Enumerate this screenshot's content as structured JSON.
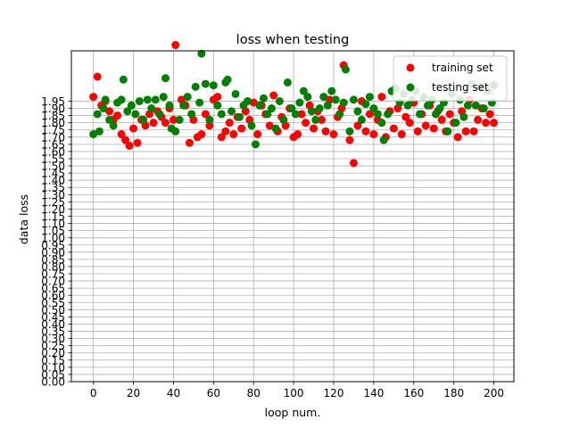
{
  "chart_data": {
    "type": "scatter",
    "title": "loss when testing",
    "xlabel": "loop num.",
    "ylabel": "data loss",
    "xlim": [
      -11,
      210
    ],
    "ylim": [
      0,
      2.3
    ],
    "grid": true,
    "legend_position": "upper right",
    "x_ticks": [
      0,
      20,
      40,
      60,
      80,
      100,
      120,
      140,
      160,
      180,
      200
    ],
    "y_ticks": [
      "0.00",
      "0.05",
      "0.10",
      "0.15",
      "0.20",
      "0.25",
      "0.30",
      "0.35",
      "0.40",
      "0.45",
      "0.50",
      "0.55",
      "0.60",
      "0.65",
      "0.70",
      "0.75",
      "0.80",
      "0.85",
      "0.90",
      "0.95",
      "1.00",
      "1.05",
      "1.10",
      "1.15",
      "1.20",
      "1.25",
      "1.30",
      "1.35",
      "1.40",
      "1.45",
      "1.50",
      "1.55",
      "1.60",
      "1.65",
      "1.70",
      "1.75",
      "1.80",
      "1.85",
      "1.90",
      "1.95"
    ],
    "series": [
      {
        "name": "training set",
        "color": "#ff0000",
        "points": [
          [
            0,
            1.98
          ],
          [
            2,
            2.12
          ],
          [
            4,
            1.92
          ],
          [
            6,
            1.95
          ],
          [
            8,
            1.88
          ],
          [
            10,
            1.82
          ],
          [
            12,
            1.85
          ],
          [
            14,
            1.72
          ],
          [
            16,
            1.68
          ],
          [
            18,
            1.64
          ],
          [
            20,
            1.76
          ],
          [
            22,
            1.66
          ],
          [
            24,
            1.82
          ],
          [
            26,
            1.78
          ],
          [
            28,
            1.86
          ],
          [
            30,
            1.8
          ],
          [
            32,
            1.88
          ],
          [
            34,
            1.84
          ],
          [
            36,
            1.8
          ],
          [
            38,
            1.9
          ],
          [
            40,
            1.82
          ],
          [
            41,
            2.34
          ],
          [
            44,
            1.96
          ],
          [
            46,
            1.92
          ],
          [
            48,
            1.66
          ],
          [
            50,
            1.82
          ],
          [
            52,
            1.7
          ],
          [
            54,
            1.72
          ],
          [
            56,
            1.86
          ],
          [
            58,
            1.78
          ],
          [
            60,
            1.96
          ],
          [
            62,
            1.98
          ],
          [
            64,
            1.7
          ],
          [
            66,
            1.74
          ],
          [
            68,
            1.8
          ],
          [
            70,
            1.72
          ],
          [
            72,
            1.84
          ],
          [
            74,
            1.76
          ],
          [
            76,
            1.88
          ],
          [
            78,
            1.82
          ],
          [
            80,
            1.94
          ],
          [
            82,
            1.72
          ],
          [
            84,
            1.92
          ],
          [
            86,
            1.86
          ],
          [
            88,
            1.78
          ],
          [
            90,
            1.99
          ],
          [
            92,
            1.74
          ],
          [
            94,
            1.84
          ],
          [
            96,
            1.78
          ],
          [
            98,
            1.9
          ],
          [
            100,
            1.7
          ],
          [
            102,
            1.72
          ],
          [
            104,
            1.86
          ],
          [
            106,
            1.8
          ],
          [
            108,
            1.92
          ],
          [
            110,
            1.76
          ],
          [
            112,
            1.88
          ],
          [
            114,
            1.82
          ],
          [
            116,
            1.74
          ],
          [
            118,
            1.96
          ],
          [
            120,
            1.72
          ],
          [
            122,
            1.84
          ],
          [
            124,
            1.9
          ],
          [
            125,
            2.2
          ],
          [
            128,
            1.68
          ],
          [
            130,
            1.52
          ],
          [
            132,
            1.78
          ],
          [
            134,
            1.95
          ],
          [
            136,
            1.74
          ],
          [
            138,
            1.86
          ],
          [
            140,
            1.72
          ],
          [
            142,
            1.82
          ],
          [
            144,
            1.98
          ],
          [
            146,
            1.7
          ],
          [
            148,
            1.88
          ],
          [
            150,
            1.76
          ],
          [
            152,
            1.9
          ],
          [
            154,
            1.72
          ],
          [
            156,
            1.84
          ],
          [
            158,
            1.8
          ],
          [
            160,
            1.94
          ],
          [
            162,
            1.74
          ],
          [
            164,
            1.86
          ],
          [
            166,
            1.78
          ],
          [
            168,
            1.92
          ],
          [
            170,
            1.76
          ],
          [
            172,
            1.88
          ],
          [
            174,
            1.82
          ],
          [
            176,
            1.74
          ],
          [
            178,
            1.86
          ],
          [
            180,
            1.8
          ],
          [
            182,
            1.7
          ],
          [
            184,
            1.88
          ],
          [
            186,
            1.74
          ],
          [
            188,
            1.96
          ],
          [
            190,
            1.74
          ],
          [
            192,
            1.82
          ],
          [
            194,
            1.9
          ],
          [
            196,
            1.8
          ],
          [
            198,
            1.86
          ],
          [
            200,
            1.8
          ]
        ]
      },
      {
        "name": "testing set",
        "color": "#008000",
        "points": [
          [
            0,
            1.72
          ],
          [
            2,
            1.86
          ],
          [
            3,
            1.74
          ],
          [
            5,
            1.9
          ],
          [
            6,
            1.96
          ],
          [
            8,
            1.82
          ],
          [
            10,
            1.78
          ],
          [
            12,
            1.94
          ],
          [
            14,
            1.96
          ],
          [
            15,
            2.1
          ],
          [
            17,
            1.88
          ],
          [
            19,
            1.92
          ],
          [
            21,
            1.86
          ],
          [
            23,
            1.95
          ],
          [
            25,
            1.82
          ],
          [
            27,
            1.96
          ],
          [
            29,
            1.9
          ],
          [
            31,
            1.96
          ],
          [
            33,
            1.86
          ],
          [
            35,
            1.98
          ],
          [
            36,
            2.11
          ],
          [
            38,
            1.92
          ],
          [
            39,
            1.76
          ],
          [
            41,
            1.74
          ],
          [
            43,
            1.82
          ],
          [
            45,
            1.92
          ],
          [
            47,
            1.98
          ],
          [
            49,
            1.86
          ],
          [
            51,
            2.05
          ],
          [
            53,
            1.94
          ],
          [
            54,
            2.28
          ],
          [
            56,
            2.07
          ],
          [
            58,
            1.82
          ],
          [
            60,
            2.06
          ],
          [
            62,
            1.92
          ],
          [
            64,
            1.86
          ],
          [
            66,
            2.08
          ],
          [
            67,
            2.1
          ],
          [
            69,
            1.88
          ],
          [
            71,
            2.0
          ],
          [
            73,
            1.84
          ],
          [
            75,
            1.92
          ],
          [
            77,
            1.95
          ],
          [
            79,
            1.78
          ],
          [
            81,
            1.65
          ],
          [
            83,
            1.92
          ],
          [
            85,
            1.97
          ],
          [
            87,
            1.86
          ],
          [
            89,
            1.9
          ],
          [
            91,
            1.76
          ],
          [
            93,
            1.95
          ],
          [
            95,
            1.82
          ],
          [
            97,
            2.08
          ],
          [
            99,
            1.9
          ],
          [
            101,
            1.86
          ],
          [
            103,
            1.94
          ],
          [
            105,
            2.02
          ],
          [
            107,
            1.98
          ],
          [
            109,
            1.88
          ],
          [
            111,
            1.82
          ],
          [
            113,
            1.9
          ],
          [
            115,
            1.98
          ],
          [
            117,
            1.92
          ],
          [
            119,
            2.02
          ],
          [
            121,
            1.96
          ],
          [
            123,
            1.86
          ],
          [
            125,
            1.94
          ],
          [
            126,
            2.17
          ],
          [
            128,
            1.74
          ],
          [
            130,
            1.96
          ],
          [
            132,
            1.88
          ],
          [
            134,
            1.82
          ],
          [
            136,
            1.93
          ],
          [
            138,
            1.98
          ],
          [
            140,
            1.9
          ],
          [
            142,
            1.86
          ],
          [
            144,
            1.8
          ],
          [
            145,
            1.68
          ],
          [
            147,
            1.86
          ],
          [
            149,
            2.02
          ],
          [
            151,
            2.04
          ],
          [
            153,
            1.94
          ],
          [
            155,
            2.0
          ],
          [
            157,
            1.92
          ],
          [
            159,
            1.96
          ],
          [
            161,
            2.02
          ],
          [
            163,
            1.86
          ],
          [
            165,
            1.98
          ],
          [
            167,
            1.92
          ],
          [
            169,
            1.96
          ],
          [
            171,
            1.86
          ],
          [
            173,
            1.9
          ],
          [
            175,
            1.94
          ],
          [
            177,
            1.74
          ],
          [
            179,
            2.0
          ],
          [
            181,
            1.8
          ],
          [
            183,
            1.96
          ],
          [
            185,
            1.84
          ],
          [
            187,
            1.92
          ],
          [
            189,
            2.07
          ],
          [
            191,
            1.92
          ],
          [
            193,
            2.05
          ],
          [
            195,
            1.9
          ],
          [
            197,
            2.02
          ],
          [
            199,
            1.94
          ],
          [
            200,
            2.06
          ]
        ]
      }
    ]
  }
}
